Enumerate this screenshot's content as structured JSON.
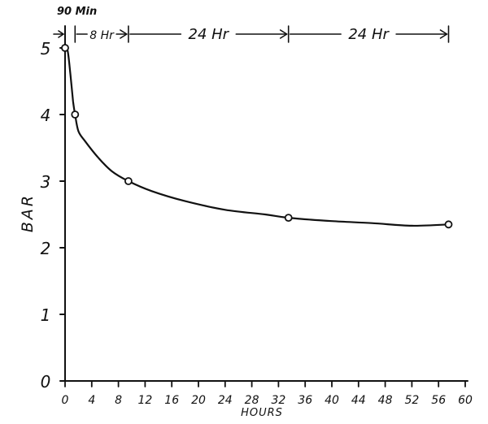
{
  "chart_data": {
    "type": "line",
    "title": "",
    "xlabel": "HOURS",
    "ylabel": "BAR",
    "xlim": [
      0,
      62
    ],
    "ylim": [
      0,
      5.2
    ],
    "x_ticks": [
      "0",
      "4",
      "8",
      "12",
      "16",
      "20",
      "24",
      "28",
      "32",
      "36",
      "40",
      "44",
      "48",
      "52",
      "56",
      "60"
    ],
    "y_ticks": [
      "0",
      "1",
      "2",
      "3",
      "4",
      "5"
    ],
    "grid": false,
    "series": [
      {
        "markers": [
          {
            "x": 0,
            "y": 5.0
          },
          {
            "x": 1.5,
            "y": 4.0
          },
          {
            "x": 9.5,
            "y": 3.0
          },
          {
            "x": 33.5,
            "y": 2.45
          },
          {
            "x": 57.5,
            "y": 2.35
          }
        ],
        "curve": [
          {
            "x": 0,
            "y": 5.0
          },
          {
            "x": 0.4,
            "y": 4.95
          },
          {
            "x": 0.8,
            "y": 4.6
          },
          {
            "x": 1.2,
            "y": 4.2
          },
          {
            "x": 1.5,
            "y": 4.0
          },
          {
            "x": 2.0,
            "y": 3.75
          },
          {
            "x": 3.0,
            "y": 3.6
          },
          {
            "x": 5.0,
            "y": 3.35
          },
          {
            "x": 7.0,
            "y": 3.15
          },
          {
            "x": 9.5,
            "y": 3.0
          },
          {
            "x": 13.0,
            "y": 2.85
          },
          {
            "x": 18.0,
            "y": 2.7
          },
          {
            "x": 24.0,
            "y": 2.57
          },
          {
            "x": 30.0,
            "y": 2.5
          },
          {
            "x": 33.5,
            "y": 2.45
          },
          {
            "x": 40.0,
            "y": 2.4
          },
          {
            "x": 46.0,
            "y": 2.37
          },
          {
            "x": 52.0,
            "y": 2.33
          },
          {
            "x": 57.5,
            "y": 2.35
          }
        ]
      }
    ],
    "annotations": {
      "top_label": "90 Min",
      "intervals": [
        {
          "label": "8 Hr",
          "from": 1.5,
          "to": 9.5
        },
        {
          "label": "24 Hr",
          "from": 9.5,
          "to": 33.5
        },
        {
          "label": "24 Hr",
          "from": 33.5,
          "to": 57.5
        }
      ]
    }
  }
}
